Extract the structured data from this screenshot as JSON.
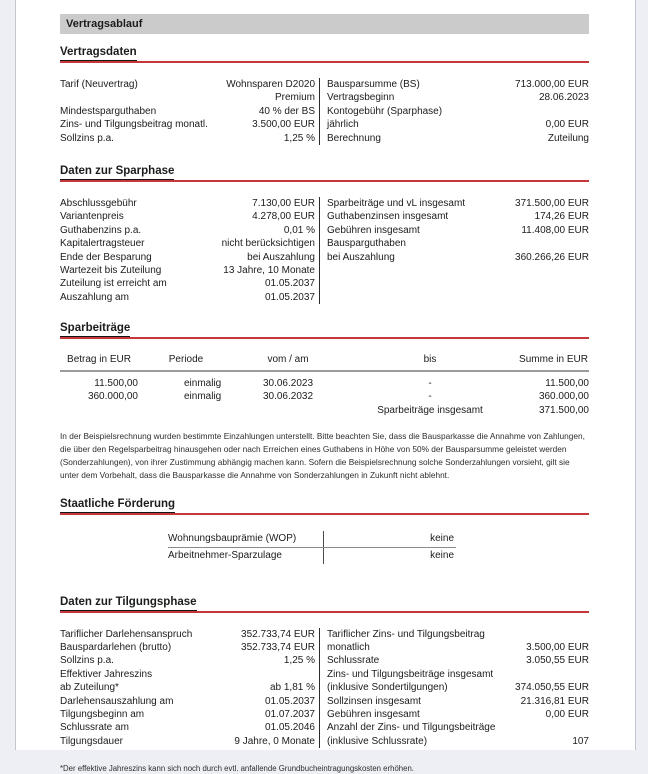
{
  "colors": {
    "accent_red": "#c4373b",
    "banner_gray": "#cbcbcb"
  },
  "banner_title": "Vertragsablauf",
  "vertragsdaten": {
    "heading": "Vertragsdaten",
    "left": [
      {
        "label": "Tarif (Neuvertrag)",
        "value": "Wohnsparen D2020"
      },
      {
        "label": "",
        "value": "Premium"
      },
      {
        "label": "Mindestsparguthaben",
        "value": "40 % der BS"
      },
      {
        "label": "Zins- und Tilgungsbeitrag monatl.",
        "value": "3.500,00 EUR"
      },
      {
        "label": "Sollzins p.a.",
        "value": "1,25 %"
      }
    ],
    "right": [
      {
        "label": "Bausparsumme (BS)",
        "value": "713.000,00 EUR"
      },
      {
        "label": "Vertragsbeginn",
        "value": "28.06.2023"
      },
      {
        "label": "Kontogebühr (Sparphase)",
        "value": ""
      },
      {
        "label": "jährlich",
        "value": "0,00 EUR"
      },
      {
        "label": "Berechnung",
        "value": "Zuteilung"
      }
    ]
  },
  "sparphase": {
    "heading": "Daten zur Sparphase",
    "left": [
      {
        "label": "Abschlussgebühr",
        "value": "7.130,00 EUR"
      },
      {
        "label": "Variantenpreis",
        "value": "4.278,00 EUR"
      },
      {
        "label": "Guthabenzins p.a.",
        "value": "0,01 %"
      },
      {
        "label": "Kapitalertragsteuer",
        "value": "nicht berücksichtigen"
      },
      {
        "label": "Ende der Besparung",
        "value": "bei Auszahlung"
      },
      {
        "label": "Wartezeit bis Zuteilung",
        "value": "13 Jahre, 10 Monate"
      },
      {
        "label": "Zuteilung ist erreicht am",
        "value": "01.05.2037"
      },
      {
        "label": "Auszahlung am",
        "value": "01.05.2037"
      }
    ],
    "right": [
      {
        "label": "Sparbeiträge und vL insgesamt",
        "value": "371.500,00 EUR"
      },
      {
        "label": "Guthabenzinsen insgesamt",
        "value": "174,26 EUR"
      },
      {
        "label": "Gebühren insgesamt",
        "value": "11.408,00 EUR"
      },
      {
        "label": "Bausparguthaben",
        "value": ""
      },
      {
        "label": "bei Auszahlung",
        "value": "360.266,26 EUR"
      }
    ]
  },
  "sparbeitraege": {
    "heading": "Sparbeiträge",
    "table": {
      "headers": [
        "Betrag in EUR",
        "Periode",
        "vom / am",
        "bis",
        "Summe in EUR"
      ],
      "rows": [
        {
          "betrag": "11.500,00",
          "periode": "einmalig",
          "vom": "30.06.2023",
          "bis": "-",
          "summe": "11.500,00"
        },
        {
          "betrag": "360.000,00",
          "periode": "einmalig",
          "vom": "30.06.2032",
          "bis": "-",
          "summe": "360.000,00"
        }
      ],
      "total_label": "Sparbeiträge insgesamt",
      "total_value": "371.500,00"
    },
    "note": "In der Beispielsrechnung wurden bestimmte Einzahlungen unterstellt. Bitte beachten Sie, dass die Bausparkasse die Annahme von Zahlungen, die über den Regelsparbeitrag hinausgehen oder nach Erreichen eines Guthabens in Höhe von 50% der Bausparsumme geleistet werden (Sonderzahlungen), von ihrer Zustimmung abhängig machen kann. Sofern die Beispielsrechnung solche Sonderzahlungen vorsieht, gilt sie unter dem Vorbehalt, dass die Bausparkasse die Annahme von Sonderzahlungen in Zukunft nicht ablehnt."
  },
  "foerderung": {
    "heading": "Staatliche Förderung",
    "rows": [
      {
        "label": "Wohnungsbauprämie (WOP)",
        "value": "keine"
      },
      {
        "label": "Arbeitnehmer-Sparzulage",
        "value": "keine"
      }
    ]
  },
  "tilgungsphase": {
    "heading": "Daten zur Tilgungsphase",
    "left": [
      {
        "label": "Tariflicher Darlehensanspruch",
        "value": "352.733,74 EUR"
      },
      {
        "label": "Bauspardarlehen (brutto)",
        "value": "352.733,74 EUR"
      },
      {
        "label": "Sollzins p.a.",
        "value": "1,25 %"
      },
      {
        "label": "Effektiver Jahreszins",
        "value": ""
      },
      {
        "label": "ab Zuteilung*",
        "value": "ab 1,81 %"
      },
      {
        "label": "Darlehensauszahlung am",
        "value": "01.05.2037"
      },
      {
        "label": "Tilgungsbeginn am",
        "value": "01.07.2037"
      },
      {
        "label": "Schlussrate am",
        "value": "01.05.2046"
      },
      {
        "label": "Tilgungsdauer",
        "value": "9 Jahre, 0 Monate"
      }
    ],
    "right": [
      {
        "label": "Tariflicher Zins- und Tilgungsbeitrag",
        "value": ""
      },
      {
        "label": "monatlich",
        "value": "3.500,00 EUR"
      },
      {
        "label": "Schlussrate",
        "value": "3.050,55 EUR"
      },
      {
        "label": "Zins- und Tilgungsbeiträge insgesamt",
        "value": ""
      },
      {
        "label": "(inklusive Sondertilgungen)",
        "value": "374.050,55 EUR"
      },
      {
        "label": "Sollzinsen insgesamt",
        "value": "21.316,81 EUR"
      },
      {
        "label": "Gebühren insgesamt",
        "value": "0,00 EUR"
      },
      {
        "label": "Anzahl der Zins- und Tilgungsbeiträge",
        "value": ""
      },
      {
        "label": "(inklusive Schlussrate)",
        "value": "107"
      }
    ],
    "footnote": "*Der effektive Jahreszins kann sich noch durch evtl. anfallende Grundbucheintragungskosten erhöhen."
  }
}
